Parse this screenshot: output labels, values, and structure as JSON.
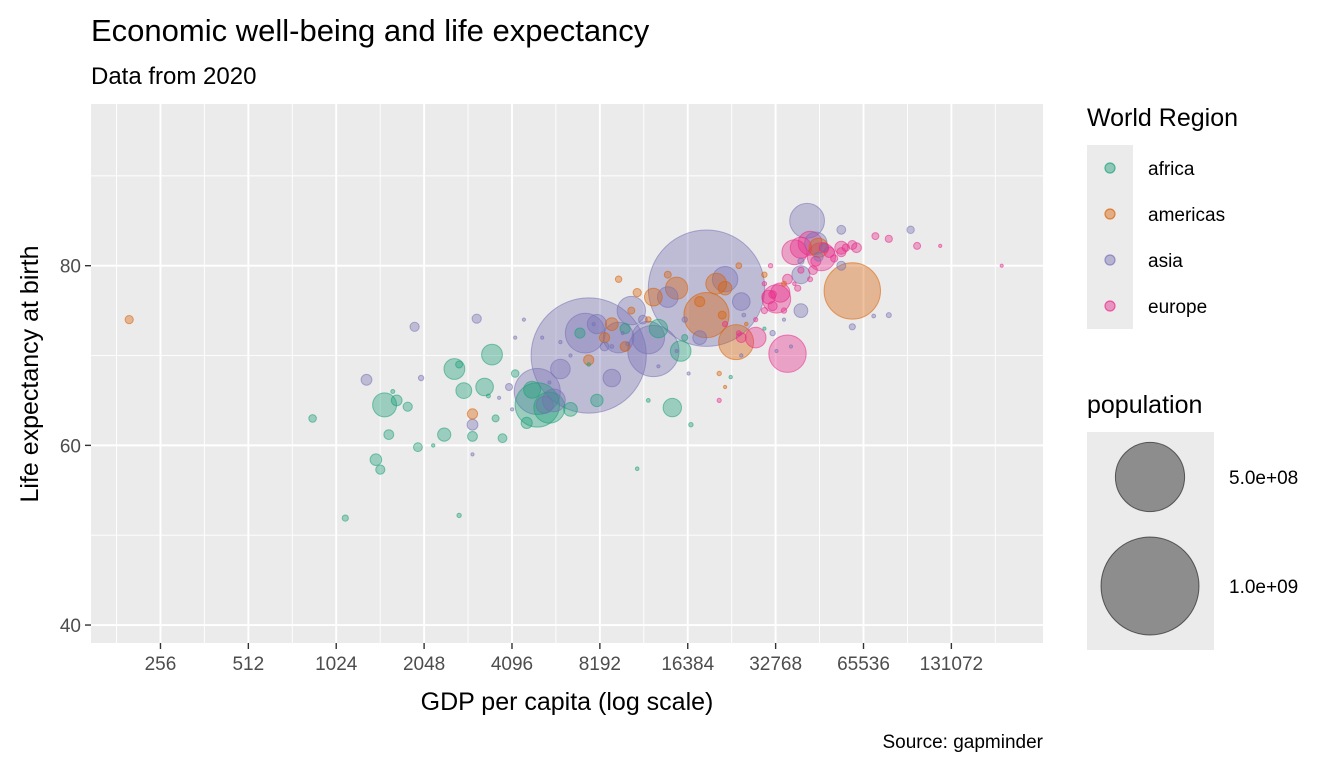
{
  "chart_data": {
    "type": "scatter",
    "title": "Economic well-being and life expectancy",
    "subtitle": "Data from 2020",
    "xlabel": "GDP per capita (log scale)",
    "ylabel": "Life expectancy at birth",
    "caption": "Source: gapminder",
    "x_scale": "log2",
    "xlim": [
      148,
      270000
    ],
    "ylim": [
      38,
      98
    ],
    "x_ticks": [
      256,
      512,
      1024,
      2048,
      4096,
      8192,
      16384,
      32768,
      65536,
      131072
    ],
    "x_tick_labels": [
      "256",
      "512",
      "1024",
      "2048",
      "4096",
      "8192",
      "16384",
      "32768",
      "65536",
      "131072"
    ],
    "y_ticks": [
      40,
      60,
      80
    ],
    "y_tick_labels": [
      "40",
      "60",
      "80"
    ],
    "grid": true,
    "legend": {
      "placement": "right",
      "color_title": "World Region",
      "size_title": "population",
      "regions": [
        {
          "key": "africa",
          "label": "africa",
          "color": "#1b9e77"
        },
        {
          "key": "americas",
          "label": "americas",
          "color": "#d95f02"
        },
        {
          "key": "asia",
          "label": "asia",
          "color": "#7570b3"
        },
        {
          "key": "europe",
          "label": "europe",
          "color": "#e7298a"
        }
      ],
      "sizes": [
        {
          "value": 500000000,
          "label": "5.0e+08"
        },
        {
          "value": 1000000000,
          "label": "1.0e+09"
        }
      ]
    },
    "series": [
      {
        "name": "africa",
        "points": [
          [
            5000,
            64.5,
            206000000
          ],
          [
            5500,
            64.2,
            102000000
          ],
          [
            1500,
            64.5,
            60000000
          ],
          [
            2600,
            68.5,
            45000000
          ],
          [
            3500,
            70.1,
            45000000
          ],
          [
            2800,
            66.1,
            26000000
          ],
          [
            3300,
            66.5,
            32000000
          ],
          [
            14500,
            64.2,
            35000000
          ],
          [
            15500,
            70.5,
            44000000
          ],
          [
            13000,
            73.0,
            35000000
          ],
          [
            4800,
            66.2,
            30000000
          ],
          [
            6500,
            64.0,
            20000000
          ],
          [
            8000,
            65.0,
            16000000
          ],
          [
            1400,
            58.4,
            14000000
          ],
          [
            1650,
            65.0,
            12000000
          ],
          [
            1800,
            64.3,
            9000000
          ],
          [
            2400,
            61.2,
            18000000
          ],
          [
            3000,
            61.0,
            10000000
          ],
          [
            3800,
            60.8,
            8000000
          ],
          [
            1450,
            57.3,
            9000000
          ],
          [
            1550,
            61.2,
            10000000
          ],
          [
            1950,
            59.8,
            8000000
          ],
          [
            850,
            63.0,
            6000000
          ],
          [
            1100,
            51.9,
            4000000
          ],
          [
            2700,
            52.2,
            2000000
          ],
          [
            2700,
            69.0,
            5000000
          ],
          [
            3600,
            63.0,
            5000000
          ],
          [
            4200,
            68.0,
            6000000
          ],
          [
            4600,
            62.5,
            13000000
          ],
          [
            7000,
            72.5,
            11000000
          ],
          [
            10000,
            73.0,
            11000000
          ],
          [
            16000,
            72.0,
            4000000
          ],
          [
            11000,
            57.4,
            1300000
          ],
          [
            16800,
            62.3,
            2000000
          ],
          [
            23000,
            67.6,
            1200000
          ],
          [
            12000,
            65.0,
            1500000
          ],
          [
            30000,
            73.0,
            1000000
          ],
          [
            7500,
            69.0,
            1400000
          ],
          [
            3400,
            65.5,
            1600000
          ],
          [
            2200,
            60.0,
            1200000
          ],
          [
            1600,
            66.0,
            1700000
          ]
        ]
      },
      {
        "name": "americas",
        "points": [
          [
            60000,
            77.2,
            331000000
          ],
          [
            19000,
            74.5,
            213000000
          ],
          [
            24000,
            71.5,
            128000000
          ],
          [
            15000,
            77.5,
            51000000
          ],
          [
            20500,
            78.0,
            45000000
          ],
          [
            12500,
            76.5,
            33000000
          ],
          [
            46000,
            82.0,
            38000000
          ],
          [
            22000,
            77.5,
            19000000
          ],
          [
            24500,
            80.0,
            3500000
          ],
          [
            18000,
            76.0,
            11000000
          ],
          [
            8500,
            72.0,
            11000000
          ],
          [
            9000,
            73.5,
            17000000
          ],
          [
            7500,
            69.5,
            11000000
          ],
          [
            3000,
            63.5,
            11000000
          ],
          [
            10000,
            71.0,
            10000000
          ],
          [
            10500,
            75.0,
            5000000
          ],
          [
            14000,
            79.0,
            5000000
          ],
          [
            11000,
            77.0,
            7000000
          ],
          [
            200,
            74.0,
            7000000
          ],
          [
            30000,
            79.0,
            3000000
          ],
          [
            12000,
            74.0,
            3300000
          ],
          [
            35000,
            78.0,
            2500000
          ],
          [
            21000,
            68.0,
            2000000
          ],
          [
            22000,
            66.5,
            800000
          ],
          [
            26000,
            73.5,
            1400000
          ],
          [
            21500,
            74.5,
            6500000
          ],
          [
            9500,
            78.5,
            4300000
          ]
        ]
      },
      {
        "name": "asia",
        "points": [
          [
            7500,
            70.0,
            1380000000
          ],
          [
            19000,
            77.5,
            1411000000
          ],
          [
            12500,
            70.5,
            274000000
          ],
          [
            5000,
            66.0,
            220000000
          ],
          [
            7300,
            72.5,
            165000000
          ],
          [
            12000,
            72.0,
            110000000
          ],
          [
            9500,
            72.0,
            97000000
          ],
          [
            10500,
            75.0,
            84000000
          ],
          [
            42000,
            85.0,
            126000000
          ],
          [
            45000,
            82.5,
            52000000
          ],
          [
            22000,
            78.5,
            67000000
          ],
          [
            40000,
            79.0,
            34000000
          ],
          [
            8000,
            73.5,
            38000000
          ],
          [
            14000,
            76.5,
            44000000
          ],
          [
            5700,
            65.0,
            54000000
          ],
          [
            5300,
            64.5,
            30000000
          ],
          [
            6000,
            68.5,
            40000000
          ],
          [
            25000,
            76.0,
            32000000
          ],
          [
            55000,
            84.0,
            8000000
          ],
          [
            95000,
            84.0,
            5800000
          ],
          [
            46000,
            81.0,
            9000000
          ],
          [
            40000,
            75.0,
            20000000
          ],
          [
            1300,
            67.3,
            12000000
          ],
          [
            1900,
            73.2,
            9000000
          ],
          [
            3100,
            74.1,
            9000000
          ],
          [
            3000,
            62.3,
            12000000
          ],
          [
            4000,
            66.5,
            5000000
          ],
          [
            8500,
            71.0,
            8000000
          ],
          [
            11500,
            74.0,
            8000000
          ],
          [
            18000,
            72.0,
            20000000
          ],
          [
            9000,
            67.5,
            32000000
          ],
          [
            55000,
            80.0,
            8500000
          ],
          [
            60000,
            73.2,
            4000000
          ],
          [
            80000,
            74.5,
            2500000
          ],
          [
            48000,
            82.0,
            6000000
          ],
          [
            71000,
            74.4,
            1500000
          ],
          [
            40000,
            80.5,
            4000000
          ],
          [
            16000,
            74.0,
            3000000
          ],
          [
            25500,
            74.5,
            1500000
          ],
          [
            9000,
            71.0,
            1500000
          ],
          [
            10200,
            71.3,
            1500000
          ],
          [
            3000,
            59.0,
            800000
          ],
          [
            4100,
            64.0,
            700000
          ],
          [
            3700,
            65.3,
            600000
          ],
          [
            5200,
            72.0,
            900000
          ],
          [
            6000,
            71.5,
            1200000
          ],
          [
            4500,
            74.0,
            1000000
          ],
          [
            4200,
            72.0,
            800000
          ],
          [
            6500,
            70.0,
            1000000
          ],
          [
            15000,
            70.5,
            600000
          ],
          [
            37000,
            71.0,
            900000
          ],
          [
            33000,
            70.5,
            1100000
          ],
          [
            16500,
            68.0,
            700000
          ],
          [
            9800,
            72.5,
            800000
          ],
          [
            13000,
            68.8,
            600000
          ],
          [
            25000,
            70.0,
            1200000
          ],
          [
            5500,
            67.0,
            500000
          ],
          [
            7800,
            73.5,
            1000000
          ],
          [
            35000,
            74.0,
            700000
          ],
          [
            32000,
            72.5,
            3000000
          ],
          [
            2000,
            67.5,
            3000000
          ]
        ]
      },
      {
        "name": "europe",
        "points": [
          [
            36000,
            70.2,
            145000000
          ],
          [
            47000,
            81.0,
            83000000
          ],
          [
            38000,
            81.5,
            65000000
          ],
          [
            33000,
            76.3,
            84000000
          ],
          [
            28000,
            72.0,
            44000000
          ],
          [
            34000,
            77.0,
            38000000
          ],
          [
            43000,
            82.5,
            60000000
          ],
          [
            40000,
            82.0,
            47000000
          ],
          [
            55000,
            82.0,
            17500000
          ],
          [
            50000,
            81.5,
            11500000
          ],
          [
            62000,
            82.0,
            10000000
          ],
          [
            31000,
            76.5,
            19000000
          ],
          [
            36000,
            78.5,
            10000000
          ],
          [
            32000,
            75.5,
            9000000
          ],
          [
            44000,
            79.5,
            8000000
          ],
          [
            55000,
            81.5,
            9000000
          ],
          [
            57000,
            82.0,
            5800000
          ],
          [
            45000,
            80.5,
            10500000
          ],
          [
            48000,
            82.0,
            10000000
          ],
          [
            52000,
            80.8,
            5500000
          ],
          [
            72000,
            83.3,
            5000000
          ],
          [
            80000,
            83.0,
            5400000
          ],
          [
            60000,
            82.3,
            8600000
          ],
          [
            100000,
            82.2,
            5000000
          ],
          [
            120000,
            82.2,
            600000
          ],
          [
            195000,
            80.0,
            40000
          ],
          [
            30000,
            75.0,
            4000000
          ],
          [
            39000,
            77.5,
            4000000
          ],
          [
            25000,
            72.0,
            10000000
          ],
          [
            35000,
            75.0,
            3000000
          ],
          [
            32000,
            76.8,
            6000000
          ],
          [
            40000,
            79.5,
            4000000
          ],
          [
            30000,
            78.0,
            2000000
          ],
          [
            24500,
            72.5,
            2500000
          ],
          [
            22000,
            73.5,
            3000000
          ],
          [
            31500,
            80.0,
            2000000
          ],
          [
            43000,
            78.5,
            2500000
          ],
          [
            38000,
            78.0,
            1300000
          ],
          [
            21000,
            65.0,
            1900000
          ],
          [
            28000,
            74.0,
            1800000
          ]
        ]
      }
    ]
  }
}
